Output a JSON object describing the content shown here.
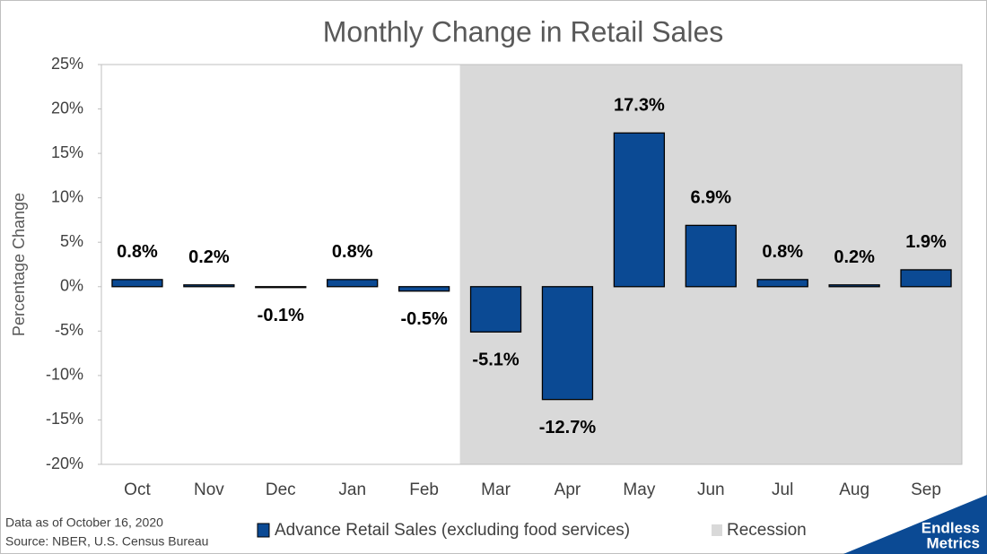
{
  "chart_data": {
    "type": "bar",
    "title": "Monthly Change in Retail Sales",
    "y_label": "Percentage Change",
    "categories": [
      "Oct",
      "Nov",
      "Dec",
      "Jan",
      "Feb",
      "Mar",
      "Apr",
      "May",
      "Jun",
      "Jul",
      "Aug",
      "Sep"
    ],
    "series": [
      {
        "name": "Advance Retail Sales (excluding food services)",
        "color": "#0b4a94",
        "values": [
          0.8,
          0.2,
          -0.1,
          0.8,
          -0.5,
          -5.1,
          -12.7,
          17.3,
          6.9,
          0.8,
          0.2,
          1.9
        ],
        "value_labels": [
          "0.8%",
          "0.2%",
          "-0.1%",
          "0.8%",
          "-0.5%",
          "-5.1%",
          "-12.7%",
          "17.3%",
          "6.9%",
          "0.8%",
          "0.2%",
          "1.9%"
        ]
      }
    ],
    "recession": {
      "name": "Recession",
      "color": "#d9d9d9",
      "start": "Mar",
      "end": "Sep"
    },
    "ylim": [
      -20,
      25
    ],
    "yticks": [
      {
        "value": -20,
        "label": "-20%"
      },
      {
        "value": -15,
        "label": "-15%"
      },
      {
        "value": -10,
        "label": "-10%"
      },
      {
        "value": -5,
        "label": "-5%"
      },
      {
        "value": 0,
        "label": "0%"
      },
      {
        "value": 5,
        "label": "5%"
      },
      {
        "value": 10,
        "label": "10%"
      },
      {
        "value": 15,
        "label": "15%"
      },
      {
        "value": 20,
        "label": "20%"
      },
      {
        "value": 25,
        "label": "25%"
      }
    ],
    "notes": [
      "Data as of October 16, 2020",
      "Source: NBER, U.S. Census Bureau"
    ],
    "brand": [
      "Endless",
      "Metrics"
    ]
  }
}
